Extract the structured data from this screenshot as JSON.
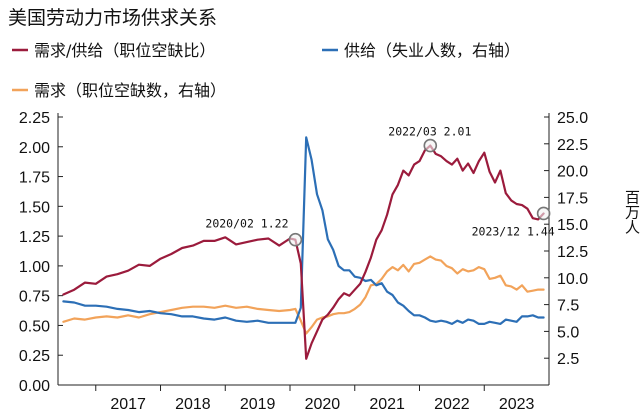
{
  "chart_data": {
    "type": "line",
    "title": "美国劳动力市场供求关系",
    "x_range": [
      "2016-06",
      "2024-01"
    ],
    "x_tick_labels": [
      "2017",
      "2018",
      "2019",
      "2020",
      "2021",
      "2022",
      "2023"
    ],
    "left_axis": {
      "ylim": [
        0,
        2.25
      ],
      "ticks": [
        "0.00",
        "0.25",
        "0.50",
        "0.75",
        "1.00",
        "1.25",
        "1.50",
        "1.75",
        "2.00",
        "2.25"
      ]
    },
    "right_axis": {
      "ylim": [
        2.5,
        25.0
      ],
      "ticks": [
        "2.5",
        "5.0",
        "7.5",
        "10.0",
        "12.5",
        "15.0",
        "17.5",
        "20.0",
        "22.5",
        "25.0"
      ],
      "unit_label": "百万人"
    },
    "legend_position": "top",
    "colors": {
      "ratio": "#9b1b3c",
      "supply": "#2c6fb6",
      "demand": "#f2a35a"
    },
    "series": [
      {
        "name": "需求/供给（职位空缺比）",
        "axis": "left",
        "color": "#9b1b3c",
        "x": [
          "2016-07",
          "2016-09",
          "2016-11",
          "2017-01",
          "2017-03",
          "2017-05",
          "2017-07",
          "2017-09",
          "2017-11",
          "2018-01",
          "2018-03",
          "2018-05",
          "2018-07",
          "2018-09",
          "2018-11",
          "2019-01",
          "2019-03",
          "2019-05",
          "2019-07",
          "2019-09",
          "2019-11",
          "2020-01",
          "2020-02",
          "2020-03",
          "2020-04",
          "2020-05",
          "2020-06",
          "2020-07",
          "2020-08",
          "2020-09",
          "2020-10",
          "2020-11",
          "2020-12",
          "2021-01",
          "2021-02",
          "2021-03",
          "2021-04",
          "2021-05",
          "2021-06",
          "2021-07",
          "2021-08",
          "2021-09",
          "2021-10",
          "2021-11",
          "2021-12",
          "2022-01",
          "2022-02",
          "2022-03",
          "2022-04",
          "2022-05",
          "2022-06",
          "2022-07",
          "2022-08",
          "2022-09",
          "2022-10",
          "2022-11",
          "2022-12",
          "2023-01",
          "2023-02",
          "2023-03",
          "2023-04",
          "2023-05",
          "2023-06",
          "2023-07",
          "2023-08",
          "2023-09",
          "2023-10",
          "2023-11",
          "2023-12"
        ],
        "values": [
          0.76,
          0.8,
          0.86,
          0.85,
          0.91,
          0.93,
          0.96,
          1.01,
          1.0,
          1.06,
          1.1,
          1.15,
          1.17,
          1.21,
          1.21,
          1.24,
          1.18,
          1.2,
          1.22,
          1.23,
          1.17,
          1.23,
          1.22,
          1.02,
          0.22,
          0.35,
          0.45,
          0.55,
          0.59,
          0.65,
          0.72,
          0.77,
          0.75,
          0.8,
          0.85,
          0.95,
          1.07,
          1.22,
          1.3,
          1.43,
          1.6,
          1.68,
          1.8,
          1.76,
          1.85,
          1.88,
          1.97,
          2.01,
          1.94,
          1.92,
          1.88,
          1.85,
          1.9,
          1.8,
          1.86,
          1.78,
          1.88,
          1.95,
          1.79,
          1.7,
          1.8,
          1.61,
          1.55,
          1.52,
          1.51,
          1.48,
          1.4,
          1.39,
          1.44
        ]
      },
      {
        "name": "供给（失业人数，右轴）",
        "axis": "right",
        "color": "#2c6fb6",
        "x": [
          "2016-07",
          "2016-09",
          "2016-11",
          "2017-01",
          "2017-03",
          "2017-05",
          "2017-07",
          "2017-09",
          "2017-11",
          "2018-01",
          "2018-03",
          "2018-05",
          "2018-07",
          "2018-09",
          "2018-11",
          "2019-01",
          "2019-03",
          "2019-05",
          "2019-07",
          "2019-09",
          "2019-11",
          "2020-01",
          "2020-02",
          "2020-03",
          "2020-04",
          "2020-05",
          "2020-06",
          "2020-07",
          "2020-08",
          "2020-09",
          "2020-10",
          "2020-11",
          "2020-12",
          "2021-01",
          "2021-02",
          "2021-03",
          "2021-04",
          "2021-05",
          "2021-06",
          "2021-07",
          "2021-08",
          "2021-09",
          "2021-10",
          "2021-11",
          "2021-12",
          "2022-01",
          "2022-02",
          "2022-03",
          "2022-04",
          "2022-05",
          "2022-06",
          "2022-07",
          "2022-08",
          "2022-09",
          "2022-10",
          "2022-11",
          "2022-12",
          "2023-01",
          "2023-02",
          "2023-03",
          "2023-04",
          "2023-05",
          "2023-06",
          "2023-07",
          "2023-08",
          "2023-09",
          "2023-10",
          "2023-11",
          "2023-12"
        ],
        "values": [
          7.8,
          7.7,
          7.4,
          7.4,
          7.3,
          7.1,
          7.0,
          6.8,
          6.9,
          6.7,
          6.6,
          6.4,
          6.4,
          6.2,
          6.1,
          6.3,
          6.0,
          5.9,
          6.0,
          5.8,
          5.8,
          5.8,
          5.8,
          7.2,
          23.1,
          21.0,
          17.8,
          16.3,
          13.6,
          12.6,
          11.1,
          10.7,
          10.7,
          10.1,
          10.0,
          9.7,
          9.8,
          9.3,
          9.5,
          8.7,
          8.4,
          7.7,
          7.4,
          6.9,
          6.5,
          6.5,
          6.3,
          6.0,
          5.9,
          6.0,
          5.9,
          5.7,
          6.0,
          5.8,
          6.1,
          6.0,
          5.7,
          5.7,
          5.9,
          5.8,
          5.7,
          6.1,
          6.0,
          5.9,
          6.4,
          6.4,
          6.5,
          6.3,
          6.3
        ]
      },
      {
        "name": "需求（职位空缺数，右轴）",
        "axis": "right",
        "color": "#f2a35a",
        "x": [
          "2016-07",
          "2016-09",
          "2016-11",
          "2017-01",
          "2017-03",
          "2017-05",
          "2017-07",
          "2017-09",
          "2017-11",
          "2018-01",
          "2018-03",
          "2018-05",
          "2018-07",
          "2018-09",
          "2018-11",
          "2019-01",
          "2019-03",
          "2019-05",
          "2019-07",
          "2019-09",
          "2019-11",
          "2020-01",
          "2020-02",
          "2020-03",
          "2020-04",
          "2020-05",
          "2020-06",
          "2020-07",
          "2020-08",
          "2020-09",
          "2020-10",
          "2020-11",
          "2020-12",
          "2021-01",
          "2021-02",
          "2021-03",
          "2021-04",
          "2021-05",
          "2021-06",
          "2021-07",
          "2021-08",
          "2021-09",
          "2021-10",
          "2021-11",
          "2021-12",
          "2022-01",
          "2022-02",
          "2022-03",
          "2022-04",
          "2022-05",
          "2022-06",
          "2022-07",
          "2022-08",
          "2022-09",
          "2022-10",
          "2022-11",
          "2022-12",
          "2023-01",
          "2023-02",
          "2023-03",
          "2023-04",
          "2023-05",
          "2023-06",
          "2023-07",
          "2023-08",
          "2023-09",
          "2023-10",
          "2023-11",
          "2023-12"
        ],
        "values": [
          5.9,
          6.2,
          6.1,
          6.3,
          6.4,
          6.3,
          6.5,
          6.3,
          6.6,
          6.8,
          7.0,
          7.2,
          7.3,
          7.3,
          7.2,
          7.4,
          7.2,
          7.3,
          7.1,
          7.0,
          6.9,
          7.0,
          7.1,
          6.0,
          4.8,
          5.4,
          6.1,
          6.3,
          6.4,
          6.6,
          6.7,
          6.7,
          6.8,
          7.1,
          7.5,
          8.2,
          9.3,
          9.4,
          9.9,
          10.6,
          11.0,
          10.7,
          11.2,
          10.6,
          11.3,
          11.4,
          11.7,
          12.0,
          11.7,
          11.6,
          11.1,
          10.9,
          10.4,
          10.8,
          10.6,
          10.7,
          11.0,
          10.8,
          9.9,
          10.0,
          10.2,
          9.3,
          9.2,
          8.9,
          9.3,
          8.7,
          8.8,
          8.9,
          8.9
        ]
      }
    ],
    "annotations": [
      {
        "label": "2020/02  1.22",
        "x": "2020-02",
        "value": 1.22,
        "series": "需求/供给（职位空缺比）"
      },
      {
        "label": "2022/03  2.01",
        "x": "2022-03",
        "value": 2.01,
        "series": "需求/供给（职位空缺比）"
      },
      {
        "label": "2023/12  1.44",
        "x": "2023-12",
        "value": 1.44,
        "series": "需求/供给（职位空缺比）"
      }
    ]
  }
}
